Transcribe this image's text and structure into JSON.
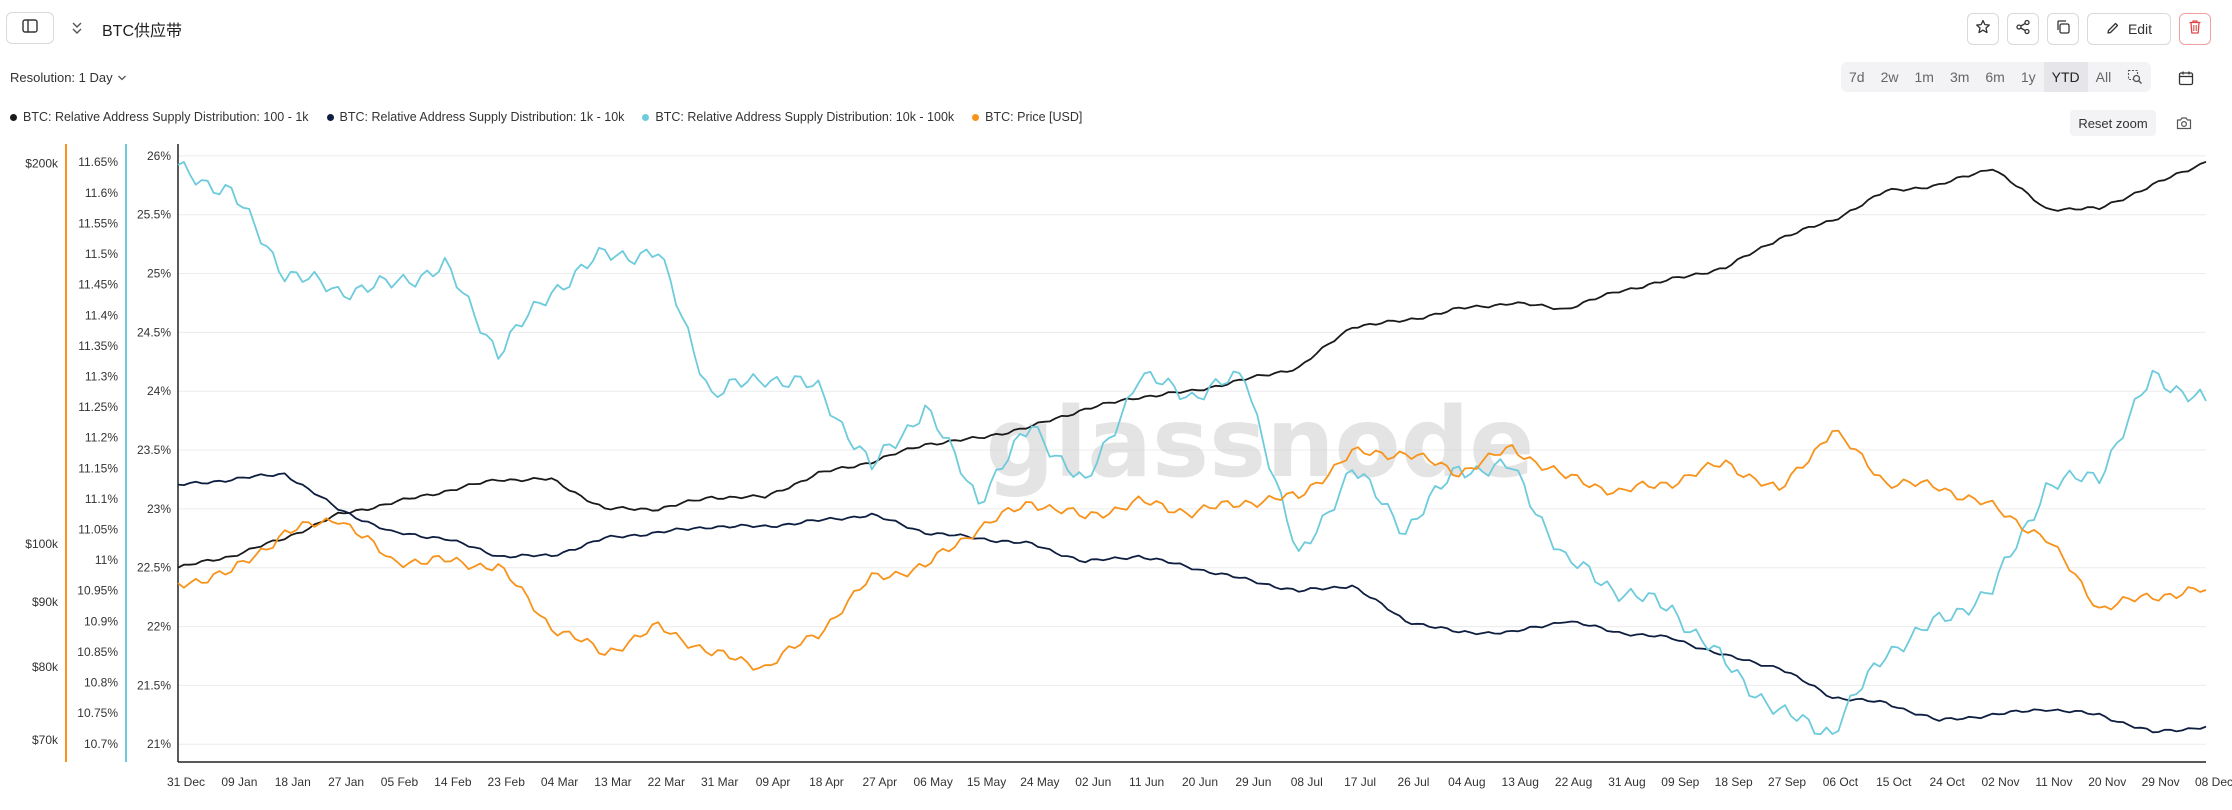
{
  "header": {
    "title": "BTC供应带",
    "edit_label": "Edit",
    "icons": {
      "sidebar": "sidebar-toggle-icon",
      "collapse": "collapse-icon",
      "star": "star-icon",
      "share": "share-icon",
      "copy": "copy-icon",
      "edit": "pencil-icon",
      "delete": "trash-icon"
    }
  },
  "controls": {
    "resolution_label": "Resolution: 1 Day",
    "ranges": [
      "7d",
      "2w",
      "1m",
      "3m",
      "6m",
      "1y",
      "YTD",
      "All"
    ],
    "active_range": "YTD",
    "reset_zoom_label": "Reset zoom",
    "zoom_icon": "zoom-select-icon",
    "calendar_icon": "calendar-icon",
    "camera_icon": "camera-icon"
  },
  "watermark": "glassnode",
  "chart_data": {
    "type": "line",
    "title": "",
    "legend_placement": "top-left",
    "grid": true,
    "x_tick_labels": [
      "31 Dec",
      "09 Jan",
      "18 Jan",
      "27 Jan",
      "05 Feb",
      "14 Feb",
      "23 Feb",
      "04 Mar",
      "13 Mar",
      "22 Mar",
      "31 Mar",
      "09 Apr",
      "18 Apr",
      "27 Apr",
      "06 May",
      "15 May",
      "24 May",
      "02 Jun",
      "11 Jun",
      "20 Jun",
      "29 Jun",
      "08 Jul",
      "17 Jul",
      "26 Jul",
      "04 Aug",
      "13 Aug",
      "22 Aug",
      "31 Aug",
      "09 Sep",
      "18 Sep",
      "27 Sep",
      "06 Oct",
      "15 Oct",
      "24 Oct",
      "02 Nov",
      "11 Nov",
      "20 Nov",
      "29 Nov",
      "08 Dec"
    ],
    "axes": {
      "price": {
        "scale": "log",
        "ticks": [
          "$70k",
          "$80k",
          "$90k",
          "$100k",
          "$200k"
        ],
        "tick_values": [
          70000,
          80000,
          90000,
          100000,
          200000
        ],
        "color": "#f7931a"
      },
      "band_10k_100k": {
        "ticks": [
          "10.7%",
          "10.75%",
          "10.8%",
          "10.85%",
          "10.9%",
          "10.95%",
          "11%",
          "11.05%",
          "11.1%",
          "11.15%",
          "11.2%",
          "11.25%",
          "11.3%",
          "11.35%",
          "11.4%",
          "11.45%",
          "11.5%",
          "11.55%",
          "11.6%",
          "11.65%"
        ],
        "range": [
          10.68,
          11.67
        ],
        "color": "#6dcbdc"
      },
      "band_main": {
        "ticks": [
          "21%",
          "21.5%",
          "22%",
          "22.5%",
          "23%",
          "23.5%",
          "24%",
          "24.5%",
          "25%",
          "25.5%",
          "26%"
        ],
        "range": [
          20.9,
          26.05
        ]
      }
    },
    "series": [
      {
        "name": "BTC: Relative Address Supply Distribution: 100 - 1k",
        "color": "#1a1a1a",
        "axis": "band_main",
        "x": [
          0,
          9,
          18,
          27,
          36,
          45,
          54,
          63,
          72,
          81,
          90,
          99,
          108,
          117,
          126,
          135,
          144,
          153,
          162,
          171,
          180,
          189,
          198,
          207,
          216,
          225,
          234,
          243,
          252,
          261,
          270,
          279,
          288,
          297,
          306,
          315,
          324,
          333,
          342
        ],
        "values": [
          22.5,
          22.6,
          22.75,
          22.95,
          23.05,
          23.15,
          23.25,
          23.25,
          23.0,
          23.0,
          23.1,
          23.1,
          23.3,
          23.4,
          23.55,
          23.6,
          23.7,
          23.85,
          23.95,
          24.0,
          24.1,
          24.2,
          24.55,
          24.6,
          24.7,
          24.75,
          24.7,
          24.85,
          24.95,
          25.05,
          25.3,
          25.45,
          25.7,
          25.75,
          25.9,
          25.55,
          25.55,
          25.75,
          25.95
        ]
      },
      {
        "name": "BTC: Relative Address Supply Distribution: 1k - 10k",
        "color": "#0e1e40",
        "axis": "band_main",
        "x": [
          0,
          9,
          18,
          27,
          36,
          45,
          54,
          63,
          72,
          81,
          90,
          99,
          108,
          117,
          126,
          135,
          144,
          153,
          162,
          171,
          180,
          189,
          198,
          207,
          216,
          225,
          234,
          243,
          252,
          261,
          270,
          279,
          288,
          297,
          306,
          315,
          324,
          333,
          342
        ],
        "values": [
          23.2,
          23.25,
          23.3,
          23.0,
          22.8,
          22.75,
          22.6,
          22.6,
          22.75,
          22.8,
          22.85,
          22.85,
          22.9,
          22.95,
          22.8,
          22.75,
          22.7,
          22.55,
          22.6,
          22.5,
          22.4,
          22.3,
          22.35,
          22.05,
          21.95,
          21.95,
          22.05,
          21.95,
          21.9,
          21.75,
          21.65,
          21.4,
          21.35,
          21.2,
          21.25,
          21.3,
          21.25,
          21.1,
          21.15
        ]
      },
      {
        "name": "BTC: Relative Address Supply Distribution: 10k - 100k",
        "color": "#6dcbdc",
        "axis": "band_10k_100k",
        "x": [
          0,
          9,
          18,
          27,
          36,
          45,
          54,
          63,
          72,
          81,
          90,
          99,
          108,
          117,
          126,
          135,
          144,
          153,
          162,
          171,
          180,
          189,
          198,
          207,
          216,
          225,
          234,
          243,
          252,
          261,
          270,
          279,
          288,
          297,
          306,
          315,
          324,
          333,
          342
        ],
        "values": [
          11.64,
          11.6,
          11.47,
          11.44,
          11.45,
          11.48,
          11.34,
          11.44,
          11.5,
          11.5,
          11.27,
          11.3,
          11.28,
          11.15,
          11.25,
          11.1,
          11.22,
          11.12,
          11.3,
          11.27,
          11.3,
          11.0,
          11.15,
          11.05,
          11.15,
          11.15,
          11.0,
          10.95,
          10.92,
          10.83,
          10.75,
          10.72,
          10.85,
          10.9,
          10.95,
          11.12,
          11.14,
          11.3,
          11.26
        ]
      },
      {
        "name": "BTC: Price [USD]",
        "color": "#f7931a",
        "axis": "price",
        "x": [
          0,
          9,
          18,
          27,
          36,
          45,
          54,
          63,
          72,
          81,
          90,
          99,
          108,
          117,
          126,
          135,
          144,
          153,
          162,
          171,
          180,
          189,
          198,
          207,
          216,
          225,
          234,
          243,
          252,
          261,
          270,
          279,
          288,
          297,
          306,
          315,
          324,
          333,
          342
        ],
        "values": [
          93000,
          95000,
          102000,
          105000,
          97000,
          97000,
          96000,
          86000,
          82000,
          86000,
          82000,
          80000,
          85000,
          94000,
          96000,
          103000,
          108000,
          105000,
          108000,
          106000,
          108000,
          109000,
          118000,
          118000,
          114000,
          119000,
          113000,
          110000,
          112000,
          116000,
          110000,
          123000,
          112000,
          111000,
          107000,
          101000,
          89000,
          91000,
          92000
        ]
      }
    ]
  }
}
